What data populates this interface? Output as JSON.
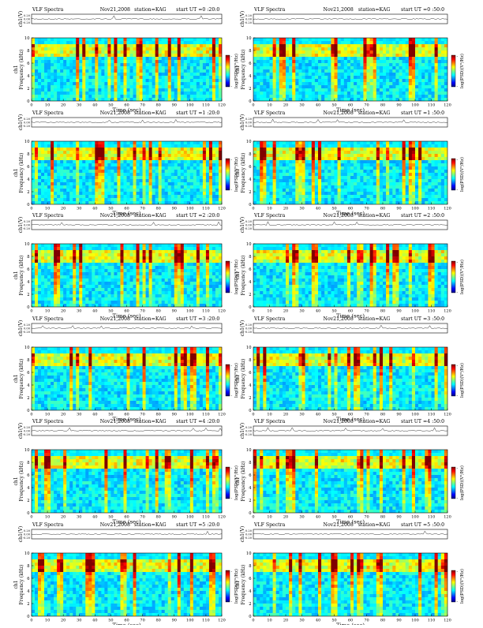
{
  "chart_data": [
    {
      "type": "heatmap",
      "header": {
        "title": "VLF Spectra",
        "date": "Nov21,2008",
        "station": "station=KAG",
        "start": "start UT =0 :20:0"
      },
      "amp_axis": {
        "label": "ch1(V)",
        "ticks": [
          "0.20",
          "0.00",
          "-0.20"
        ]
      },
      "spectrogram": {
        "ylabel": "Frequency (kHz)",
        "ylabel_ch": "ch1",
        "yticks": [
          "0",
          "2",
          "4",
          "6",
          "8",
          "10"
        ],
        "ylim": [
          0,
          10
        ]
      },
      "x_axis": {
        "label": "Time (sec)",
        "ticks": [
          "0",
          "10",
          "20",
          "30",
          "40",
          "50",
          "60",
          "70",
          "80",
          "90",
          "100",
          "110",
          "120"
        ],
        "xlim": [
          0,
          120
        ]
      },
      "colorbar": {
        "label": "log(PSD)(V²/Hz)",
        "tick_top": "-",
        "tick_bottom": "-"
      },
      "colorscale": [
        "#00007f",
        "#0000ff",
        "#007fff",
        "#00ffff",
        "#7fff7f",
        "#ffff00",
        "#ff7f00",
        "#ff0000",
        "#7f0000"
      ]
    },
    {
      "type": "heatmap",
      "header": {
        "title": "VLF Spectra",
        "date": "Nov21,2008",
        "station": "station=KAG",
        "start": "start UT =0 :50:0"
      },
      "amp_axis": {
        "label": "ch1(V)",
        "ticks": [
          "0.20",
          "0.00",
          "-0.20"
        ]
      },
      "spectrogram": {
        "ylabel": "Frequency (kHz)",
        "ylabel_ch": "ch1",
        "yticks": [
          "0",
          "2",
          "4",
          "6",
          "8",
          "10"
        ],
        "ylim": [
          0,
          10
        ]
      },
      "x_axis": {
        "label": "Time (sec)",
        "ticks": [
          "0",
          "10",
          "20",
          "30",
          "40",
          "50",
          "60",
          "70",
          "80",
          "90",
          "100",
          "110",
          "120"
        ],
        "xlim": [
          0,
          120
        ]
      },
      "colorbar": {
        "label": "log(PSD)(V²/Hz)",
        "tick_top": "-",
        "tick_bottom": "-"
      },
      "colorscale": [
        "#00007f",
        "#0000ff",
        "#007fff",
        "#00ffff",
        "#7fff7f",
        "#ffff00",
        "#ff7f00",
        "#ff0000",
        "#7f0000"
      ]
    },
    {
      "type": "heatmap",
      "header": {
        "title": "VLF Spectra",
        "date": "Nov21,2008",
        "station": "station=KAG",
        "start": "start UT =1 :20:0"
      },
      "amp_axis": {
        "label": "ch1(V)",
        "ticks": [
          "0.20",
          "0.00",
          "-0.20"
        ]
      },
      "spectrogram": {
        "ylabel": "Frequency (kHz)",
        "ylabel_ch": "ch1",
        "yticks": [
          "0",
          "2",
          "4",
          "6",
          "8",
          "10"
        ],
        "ylim": [
          0,
          10
        ]
      },
      "x_axis": {
        "label": "Time (sec)",
        "ticks": [
          "0",
          "10",
          "20",
          "30",
          "40",
          "50",
          "60",
          "70",
          "80",
          "90",
          "100",
          "110",
          "120"
        ],
        "xlim": [
          0,
          120
        ]
      },
      "colorbar": {
        "label": "log(PSD)(V²/Hz)",
        "tick_top": "-",
        "tick_bottom": "-"
      },
      "colorscale": [
        "#00007f",
        "#0000ff",
        "#007fff",
        "#00ffff",
        "#7fff7f",
        "#ffff00",
        "#ff7f00",
        "#ff0000",
        "#7f0000"
      ]
    },
    {
      "type": "heatmap",
      "header": {
        "title": "VLF Spectra",
        "date": "Nov21,2008",
        "station": "station=KAG",
        "start": "start UT =1 :50:0"
      },
      "amp_axis": {
        "label": "ch1(V)",
        "ticks": [
          "0.20",
          "0.00",
          "-0.20"
        ]
      },
      "spectrogram": {
        "ylabel": "Frequency (kHz)",
        "ylabel_ch": "ch1",
        "yticks": [
          "0",
          "2",
          "4",
          "6",
          "8",
          "10"
        ],
        "ylim": [
          0,
          10
        ]
      },
      "x_axis": {
        "label": "Time (sec)",
        "ticks": [
          "0",
          "10",
          "20",
          "30",
          "40",
          "50",
          "60",
          "70",
          "80",
          "90",
          "100",
          "110",
          "120"
        ],
        "xlim": [
          0,
          120
        ]
      },
      "colorbar": {
        "label": "log(PSD)(V²/Hz)",
        "tick_top": "-",
        "tick_bottom": "-"
      },
      "colorscale": [
        "#00007f",
        "#0000ff",
        "#007fff",
        "#00ffff",
        "#7fff7f",
        "#ffff00",
        "#ff7f00",
        "#ff0000",
        "#7f0000"
      ]
    },
    {
      "type": "heatmap",
      "header": {
        "title": "VLF Spectra",
        "date": "Nov21,2008",
        "station": "station=KAG",
        "start": "start UT =2 :20:0"
      },
      "amp_axis": {
        "label": "ch1(V)",
        "ticks": [
          "0.20",
          "0.00",
          "-0.20"
        ]
      },
      "spectrogram": {
        "ylabel": "Frequency (kHz)",
        "ylabel_ch": "ch1",
        "yticks": [
          "0",
          "2",
          "4",
          "6",
          "8",
          "10"
        ],
        "ylim": [
          0,
          10
        ]
      },
      "x_axis": {
        "label": "Time (sec)",
        "ticks": [
          "0",
          "10",
          "20",
          "30",
          "40",
          "50",
          "60",
          "70",
          "80",
          "90",
          "100",
          "110",
          "120"
        ],
        "xlim": [
          0,
          120
        ]
      },
      "colorbar": {
        "label": "log(PSD)(V²/Hz)",
        "tick_top": "-",
        "tick_bottom": "-"
      },
      "colorscale": [
        "#00007f",
        "#0000ff",
        "#007fff",
        "#00ffff",
        "#7fff7f",
        "#ffff00",
        "#ff7f00",
        "#ff0000",
        "#7f0000"
      ]
    },
    {
      "type": "heatmap",
      "header": {
        "title": "VLF Spectra",
        "date": "Nov21,2008",
        "station": "station=KAG",
        "start": "start UT =2 :50:0"
      },
      "amp_axis": {
        "label": "ch1(V)",
        "ticks": [
          "0.20",
          "0.00",
          "-0.20"
        ]
      },
      "spectrogram": {
        "ylabel": "Frequency (kHz)",
        "ylabel_ch": "ch1",
        "yticks": [
          "0",
          "2",
          "4",
          "6",
          "8",
          "10"
        ],
        "ylim": [
          0,
          10
        ]
      },
      "x_axis": {
        "label": "Time (sec)",
        "ticks": [
          "0",
          "10",
          "20",
          "30",
          "40",
          "50",
          "60",
          "70",
          "80",
          "90",
          "100",
          "110",
          "120"
        ],
        "xlim": [
          0,
          120
        ]
      },
      "colorbar": {
        "label": "log(PSD)(V²/Hz)",
        "tick_top": "-",
        "tick_bottom": "-"
      },
      "colorscale": [
        "#00007f",
        "#0000ff",
        "#007fff",
        "#00ffff",
        "#7fff7f",
        "#ffff00",
        "#ff7f00",
        "#ff0000",
        "#7f0000"
      ]
    },
    {
      "type": "heatmap",
      "header": {
        "title": "VLF Spectra",
        "date": "Nov21,2008",
        "station": "station=KAG",
        "start": "start UT =3 :20:0"
      },
      "amp_axis": {
        "label": "ch1(V)",
        "ticks": [
          "0.20",
          "0.00",
          "-0.20"
        ]
      },
      "spectrogram": {
        "ylabel": "Frequency (kHz)",
        "ylabel_ch": "ch1",
        "yticks": [
          "0",
          "2",
          "4",
          "6",
          "8",
          "10"
        ],
        "ylim": [
          0,
          10
        ]
      },
      "x_axis": {
        "label": "Time (sec)",
        "ticks": [
          "0",
          "10",
          "20",
          "30",
          "40",
          "50",
          "60",
          "70",
          "80",
          "90",
          "100",
          "110",
          "120"
        ],
        "xlim": [
          0,
          120
        ]
      },
      "colorbar": {
        "label": "log(PSD)(V²/Hz)",
        "tick_top": "-",
        "tick_bottom": "-"
      },
      "colorscale": [
        "#00007f",
        "#0000ff",
        "#007fff",
        "#00ffff",
        "#7fff7f",
        "#ffff00",
        "#ff7f00",
        "#ff0000",
        "#7f0000"
      ]
    },
    {
      "type": "heatmap",
      "header": {
        "title": "VLF Spectra",
        "date": "Nov21,2008",
        "station": "station=KAG",
        "start": "start UT =3 :50:0"
      },
      "amp_axis": {
        "label": "ch1(V)",
        "ticks": [
          "0.20",
          "0.00",
          "-0.20"
        ]
      },
      "spectrogram": {
        "ylabel": "Frequency (kHz)",
        "ylabel_ch": "ch1",
        "yticks": [
          "0",
          "2",
          "4",
          "6",
          "8",
          "10"
        ],
        "ylim": [
          0,
          10
        ]
      },
      "x_axis": {
        "label": "Time (sec)",
        "ticks": [
          "0",
          "10",
          "20",
          "30",
          "40",
          "50",
          "60",
          "70",
          "80",
          "90",
          "100",
          "110",
          "120"
        ],
        "xlim": [
          0,
          120
        ]
      },
      "colorbar": {
        "label": "log(PSD)(V²/Hz)",
        "tick_top": "-",
        "tick_bottom": "-"
      },
      "colorscale": [
        "#00007f",
        "#0000ff",
        "#007fff",
        "#00ffff",
        "#7fff7f",
        "#ffff00",
        "#ff7f00",
        "#ff0000",
        "#7f0000"
      ]
    },
    {
      "type": "heatmap",
      "header": {
        "title": "VLF Spectra",
        "date": "Nov21,2008",
        "station": "station=KAG",
        "start": "start UT =4 :20:0"
      },
      "amp_axis": {
        "label": "ch1(V)",
        "ticks": [
          "0.20",
          "0.00",
          "-0.20"
        ]
      },
      "spectrogram": {
        "ylabel": "Frequency (kHz)",
        "ylabel_ch": "ch1",
        "yticks": [
          "0",
          "2",
          "4",
          "6",
          "8",
          "10"
        ],
        "ylim": [
          0,
          10
        ]
      },
      "x_axis": {
        "label": "Time (sec)",
        "ticks": [
          "0",
          "10",
          "20",
          "30",
          "40",
          "50",
          "60",
          "70",
          "80",
          "90",
          "100",
          "110",
          "120"
        ],
        "xlim": [
          0,
          120
        ]
      },
      "colorbar": {
        "label": "log(PSD)(V²/Hz)",
        "tick_top": "-",
        "tick_bottom": "-"
      },
      "colorscale": [
        "#00007f",
        "#0000ff",
        "#007fff",
        "#00ffff",
        "#7fff7f",
        "#ffff00",
        "#ff7f00",
        "#ff0000",
        "#7f0000"
      ]
    },
    {
      "type": "heatmap",
      "header": {
        "title": "VLF Spectra",
        "date": "Nov21,2008",
        "station": "station=KAG",
        "start": "start UT =4 :50:0"
      },
      "amp_axis": {
        "label": "ch1(V)",
        "ticks": [
          "0.20",
          "0.00",
          "-0.20"
        ]
      },
      "spectrogram": {
        "ylabel": "Frequency (kHz)",
        "ylabel_ch": "ch1",
        "yticks": [
          "0",
          "2",
          "4",
          "6",
          "8",
          "10"
        ],
        "ylim": [
          0,
          10
        ]
      },
      "x_axis": {
        "label": "Time (sec)",
        "ticks": [
          "0",
          "10",
          "20",
          "30",
          "40",
          "50",
          "60",
          "70",
          "80",
          "90",
          "100",
          "110",
          "120"
        ],
        "xlim": [
          0,
          120
        ]
      },
      "colorbar": {
        "label": "log(PSD)(V²/Hz)",
        "tick_top": "-",
        "tick_bottom": "-"
      },
      "colorscale": [
        "#00007f",
        "#0000ff",
        "#007fff",
        "#00ffff",
        "#7fff7f",
        "#ffff00",
        "#ff7f00",
        "#ff0000",
        "#7f0000"
      ]
    },
    {
      "type": "heatmap",
      "header": {
        "title": "VLF Spectra",
        "date": "Nov21,2008",
        "station": "station=KAG",
        "start": "start UT =5 :20:0"
      },
      "amp_axis": {
        "label": "ch1(V)",
        "ticks": [
          "0.20",
          "0.00",
          "-0.20"
        ]
      },
      "spectrogram": {
        "ylabel": "Frequency (kHz)",
        "ylabel_ch": "ch1",
        "yticks": [
          "0",
          "2",
          "4",
          "6",
          "8",
          "10"
        ],
        "ylim": [
          0,
          10
        ]
      },
      "x_axis": {
        "label": "Time (sec)",
        "ticks": [
          "0",
          "10",
          "20",
          "30",
          "40",
          "50",
          "60",
          "70",
          "80",
          "90",
          "100",
          "110",
          "120"
        ],
        "xlim": [
          0,
          120
        ]
      },
      "colorbar": {
        "label": "log(PSD)(V²/Hz)",
        "tick_top": "-",
        "tick_bottom": "-"
      },
      "colorscale": [
        "#00007f",
        "#0000ff",
        "#007fff",
        "#00ffff",
        "#7fff7f",
        "#ffff00",
        "#ff7f00",
        "#ff0000",
        "#7f0000"
      ]
    },
    {
      "type": "heatmap",
      "header": {
        "title": "VLF Spectra",
        "date": "Nov21,2008",
        "station": "station=KAG",
        "start": "start UT =5 :50:0"
      },
      "amp_axis": {
        "label": "ch1(V)",
        "ticks": [
          "0.20",
          "0.00",
          "-0.20"
        ]
      },
      "spectrogram": {
        "ylabel": "Frequency (kHz)",
        "ylabel_ch": "ch1",
        "yticks": [
          "0",
          "2",
          "4",
          "6",
          "8",
          "10"
        ],
        "ylim": [
          0,
          10
        ]
      },
      "x_axis": {
        "label": "Time (sec)",
        "ticks": [
          "0",
          "10",
          "20",
          "30",
          "40",
          "50",
          "60",
          "70",
          "80",
          "90",
          "100",
          "110",
          "120"
        ],
        "xlim": [
          0,
          120
        ]
      },
      "colorbar": {
        "label": "log(PSD)(V²/Hz)",
        "tick_top": "-",
        "tick_bottom": "-"
      },
      "colorscale": [
        "#00007f",
        "#0000ff",
        "#007fff",
        "#00ffff",
        "#7fff7f",
        "#ffff00",
        "#ff7f00",
        "#ff0000",
        "#7f0000"
      ]
    }
  ]
}
